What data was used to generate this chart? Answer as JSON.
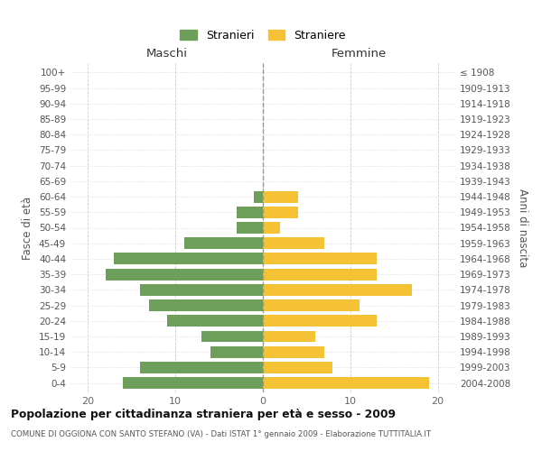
{
  "age_groups": [
    "0-4",
    "5-9",
    "10-14",
    "15-19",
    "20-24",
    "25-29",
    "30-34",
    "35-39",
    "40-44",
    "45-49",
    "50-54",
    "55-59",
    "60-64",
    "65-69",
    "70-74",
    "75-79",
    "80-84",
    "85-89",
    "90-94",
    "95-99",
    "100+"
  ],
  "birth_years": [
    "2004-2008",
    "1999-2003",
    "1994-1998",
    "1989-1993",
    "1984-1988",
    "1979-1983",
    "1974-1978",
    "1969-1973",
    "1964-1968",
    "1959-1963",
    "1954-1958",
    "1949-1953",
    "1944-1948",
    "1939-1943",
    "1934-1938",
    "1929-1933",
    "1924-1928",
    "1919-1923",
    "1914-1918",
    "1909-1913",
    "≤ 1908"
  ],
  "maschi": [
    16,
    14,
    6,
    7,
    11,
    13,
    14,
    18,
    17,
    9,
    3,
    3,
    1,
    0,
    0,
    0,
    0,
    0,
    0,
    0,
    0
  ],
  "femmine": [
    19,
    8,
    7,
    6,
    13,
    11,
    17,
    13,
    13,
    7,
    2,
    4,
    4,
    0,
    0,
    0,
    0,
    0,
    0,
    0,
    0
  ],
  "maschi_color": "#6d9e5a",
  "femmine_color": "#f5c235",
  "bar_height": 0.75,
  "xlim": 22,
  "xlabel_left": "Maschi",
  "xlabel_right": "Femmine",
  "ylabel_left": "Fasce di età",
  "ylabel_right": "Anni di nascita",
  "legend_stranieri": "Stranieri",
  "legend_straniere": "Straniere",
  "title": "Popolazione per cittadinanza straniera per età e sesso - 2009",
  "subtitle": "COMUNE DI OGGIONA CON SANTO STEFANO (VA) - Dati ISTAT 1° gennaio 2009 - Elaborazione TUTTITALIA.IT",
  "bg_color": "#ffffff",
  "grid_color": "#cccccc"
}
